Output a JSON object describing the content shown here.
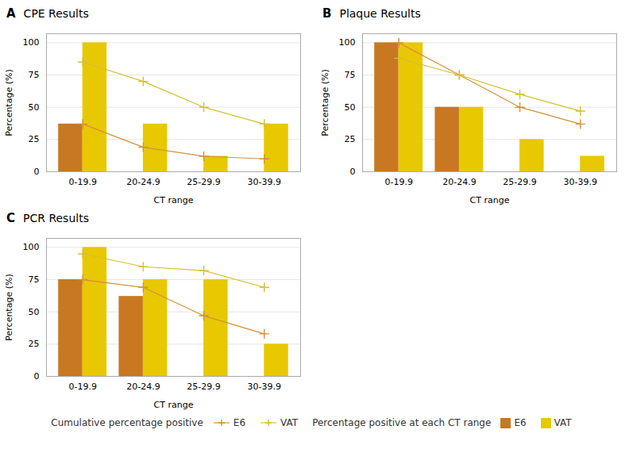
{
  "chart_data": [
    {
      "type": "bar",
      "title": "CPE Results",
      "panel_label": "A",
      "categories": [
        "0-19.9",
        "20-24.9",
        "25-29.9",
        "30-39.9"
      ],
      "xlabel": "CT range",
      "ylabel": "Percentage (%)",
      "ylim": [
        0,
        107
      ],
      "yticks": [
        0,
        25,
        50,
        75,
        100
      ],
      "grid": true,
      "legend": "bottom",
      "series": [
        {
          "name": "E6",
          "type": "line",
          "color": "#D4903A",
          "marker": "plus",
          "legend_title": "Cumulative percentage positive",
          "values": [
            37,
            19,
            12,
            10
          ]
        },
        {
          "name": "VAT",
          "type": "line",
          "color": "#D4C030",
          "marker": "plus",
          "legend_title": "Cumulative percentage positive",
          "values": [
            85,
            70,
            50,
            37
          ]
        },
        {
          "name": "E6",
          "type": "bar",
          "color": "#C87820",
          "legend_title": "Percentage positive at each CT range",
          "values": [
            37,
            0,
            0,
            0
          ]
        },
        {
          "name": "VAT",
          "type": "bar",
          "color": "#E8C800",
          "legend_title": "Percentage positive at each CT range",
          "values": [
            100,
            37,
            12,
            37
          ]
        }
      ]
    },
    {
      "type": "bar",
      "title": "Plaque Results",
      "panel_label": "B",
      "categories": [
        "0-19.9",
        "20-24.9",
        "25-29.9",
        "30-39.9"
      ],
      "xlabel": "CT range",
      "ylabel": "Percentage (%)",
      "ylim": [
        0,
        107
      ],
      "yticks": [
        0,
        25,
        50,
        75,
        100
      ],
      "grid": true,
      "legend": "bottom",
      "series": [
        {
          "name": "E6",
          "type": "line",
          "color": "#D4903A",
          "marker": "plus",
          "legend_title": "Cumulative percentage positive",
          "values": [
            100,
            75,
            50,
            37
          ]
        },
        {
          "name": "VAT",
          "type": "line",
          "color": "#D4C030",
          "marker": "plus",
          "legend_title": "Cumulative percentage positive",
          "values": [
            88,
            75,
            60,
            47
          ]
        },
        {
          "name": "E6",
          "type": "bar",
          "color": "#C87820",
          "legend_title": "Percentage positive at each CT range",
          "values": [
            100,
            50,
            0,
            0
          ]
        },
        {
          "name": "VAT",
          "type": "bar",
          "color": "#E8C800",
          "legend_title": "Percentage positive at each CT range",
          "values": [
            100,
            50,
            25,
            12
          ]
        }
      ]
    },
    {
      "type": "bar",
      "title": "PCR Results",
      "panel_label": "C",
      "categories": [
        "0-19.9",
        "20-24.9",
        "25-29.9",
        "30-39.9"
      ],
      "xlabel": "CT range",
      "ylabel": "Percentage (%)",
      "ylim": [
        0,
        107
      ],
      "yticks": [
        0,
        25,
        50,
        75,
        100
      ],
      "grid": true,
      "legend": "bottom",
      "series": [
        {
          "name": "E6",
          "type": "line",
          "color": "#D4903A",
          "marker": "plus",
          "legend_title": "Cumulative percentage positive",
          "values": [
            75,
            69,
            47,
            33
          ]
        },
        {
          "name": "VAT",
          "type": "line",
          "color": "#D4C030",
          "marker": "plus",
          "legend_title": "Cumulative percentage positive",
          "values": [
            95,
            85,
            82,
            69
          ]
        },
        {
          "name": "E6",
          "type": "bar",
          "color": "#C87820",
          "legend_title": "Percentage positive at each CT range",
          "values": [
            75,
            62,
            0,
            0
          ]
        },
        {
          "name": "VAT",
          "type": "bar",
          "color": "#E8C800",
          "legend_title": "Percentage positive at each CT range",
          "values": [
            100,
            75,
            75,
            25
          ]
        }
      ]
    }
  ]
}
